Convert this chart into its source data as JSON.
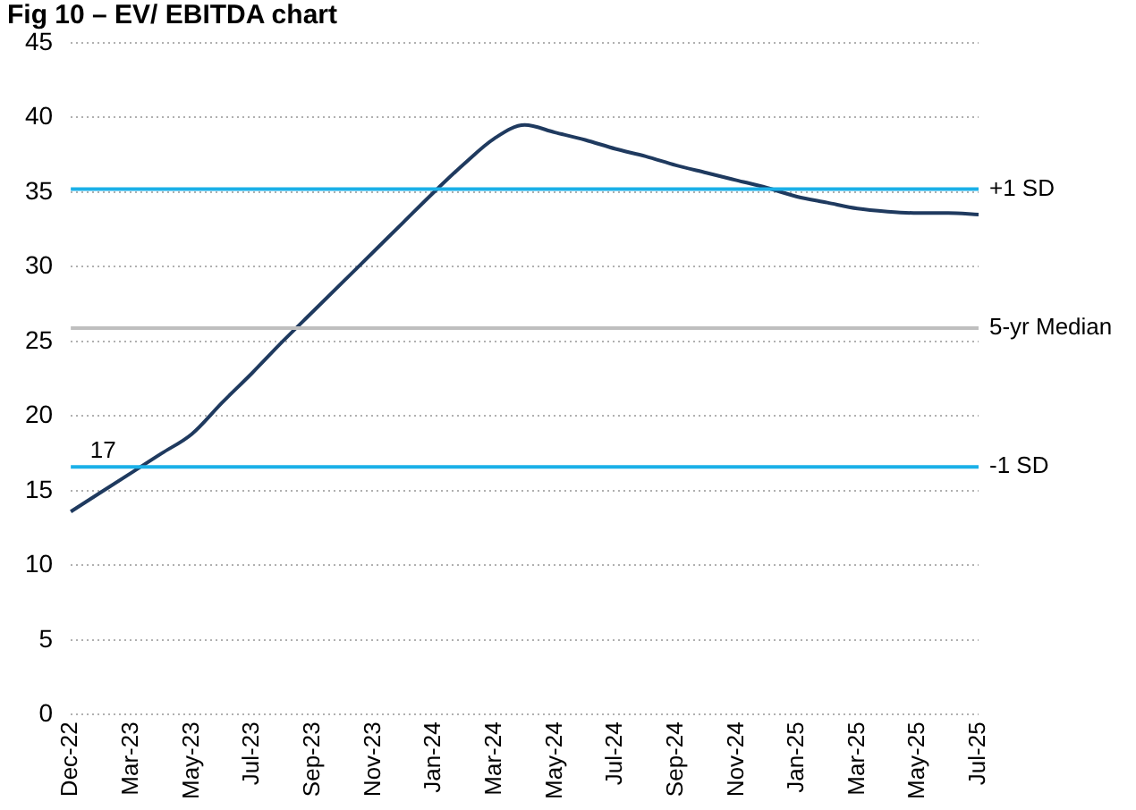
{
  "chart_data": {
    "type": "line",
    "title": "Fig 10 – EV/ EBITDA chart",
    "categories": [
      "Dec-22",
      null,
      "Mar-23",
      null,
      "May-23",
      null,
      "Jul-23",
      null,
      "Sep-23",
      null,
      "Nov-23",
      null,
      "Jan-24",
      null,
      "Mar-24",
      null,
      "May-24",
      null,
      "Jul-24",
      null,
      "Sep-24",
      null,
      "Nov-24",
      null,
      "Jan-25",
      null,
      "Mar-25",
      null,
      "May-25",
      null,
      "Jul-25"
    ],
    "series": [
      {
        "color": "#1f3a5f",
        "values": [
          13.6,
          14.9,
          16.2,
          17.5,
          18.8,
          20.9,
          22.9,
          25.0,
          27.0,
          29.0,
          31.0,
          33.0,
          35.0,
          36.9,
          38.6,
          39.5,
          39.0,
          38.5,
          37.9,
          37.4,
          36.8,
          36.3,
          35.8,
          35.3,
          34.7,
          34.3,
          33.9,
          33.7,
          33.6,
          33.6,
          33.5
        ]
      }
    ],
    "ylim": [
      0,
      45
    ],
    "yticks": [
      0,
      5,
      10,
      15,
      20,
      25,
      30,
      35,
      40,
      45
    ],
    "grid": "y",
    "legend": false,
    "marker": "none",
    "line_style": "solid",
    "ref_lines": [
      {
        "axis": "y",
        "value": 35.2,
        "label": "+1 SD",
        "color": "#1ab0e8"
      },
      {
        "axis": "y",
        "value": 25.9,
        "label": "5-yr Median",
        "color": "#bfbfbf"
      },
      {
        "axis": "y",
        "value": 16.6,
        "label": "-1 SD",
        "color": "#1ab0e8"
      }
    ],
    "annotations": [
      {
        "text": "17",
        "x": "Dec-22",
        "y": 16.6
      }
    ]
  }
}
